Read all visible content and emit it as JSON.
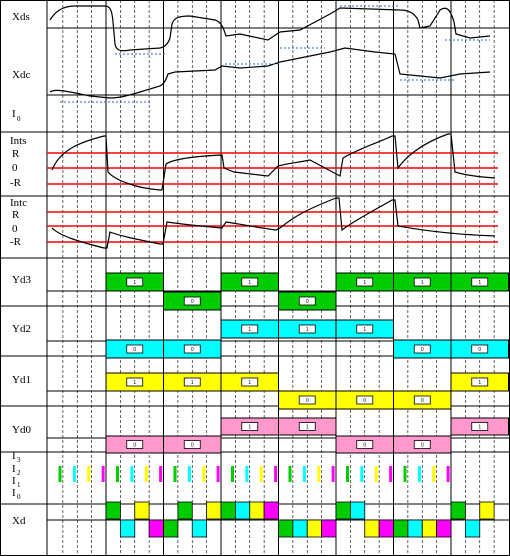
{
  "labels": {
    "xds": "Xds",
    "xdc": "Xdc",
    "i0_top": "I",
    "i0_top_sub": "0",
    "ints": "Ints",
    "r_plus_1": "R",
    "zero_1": "0",
    "r_minus_1": "-R",
    "intc": "Intc",
    "r_plus_2": "R",
    "zero_2": "0",
    "r_minus_2": "-R",
    "yd3": "Yd3",
    "yd2": "Yd2",
    "yd1": "Yd1",
    "yd0": "Yd0",
    "i3": "I",
    "i3_sub": "3",
    "i2": "I",
    "i2_sub": "2",
    "i1": "I",
    "i1_sub": "1",
    "i0": "I",
    "i0_sub": "0",
    "xd": "Xd"
  },
  "colors": {
    "green": "#00cc00",
    "cyan": "#00ffff",
    "yellow": "#ffff00",
    "pink": "#ff99cc",
    "magenta": "#ff00ff",
    "red": "#ff0000",
    "blue_dotted": "#3366cc"
  },
  "digital": {
    "yd3": {
      "color": "green",
      "high_label": "1",
      "low_label": "0",
      "high_cells": [
        1,
        3,
        5,
        6,
        7
      ],
      "low_cells": [
        2,
        4
      ]
    },
    "yd2": {
      "color": "cyan",
      "high_label": "1",
      "low_label": "0",
      "high_cells": [
        3,
        4,
        5
      ],
      "low_cells": [
        1,
        2,
        6,
        7
      ]
    },
    "yd1": {
      "color": "yellow",
      "high_label": "1",
      "low_label": "0",
      "high_cells": [
        1,
        2,
        3,
        7
      ],
      "low_cells": [
        4,
        5,
        6
      ]
    },
    "yd0": {
      "color": "pink",
      "high_label": "1",
      "low_label": "0",
      "high_cells": [
        3,
        4,
        7
      ],
      "low_cells": [
        1,
        2,
        5,
        6
      ]
    }
  },
  "pulses": {
    "i3": "magenta",
    "i2": "yellow",
    "i1": "cyan",
    "i0": "green"
  }
}
